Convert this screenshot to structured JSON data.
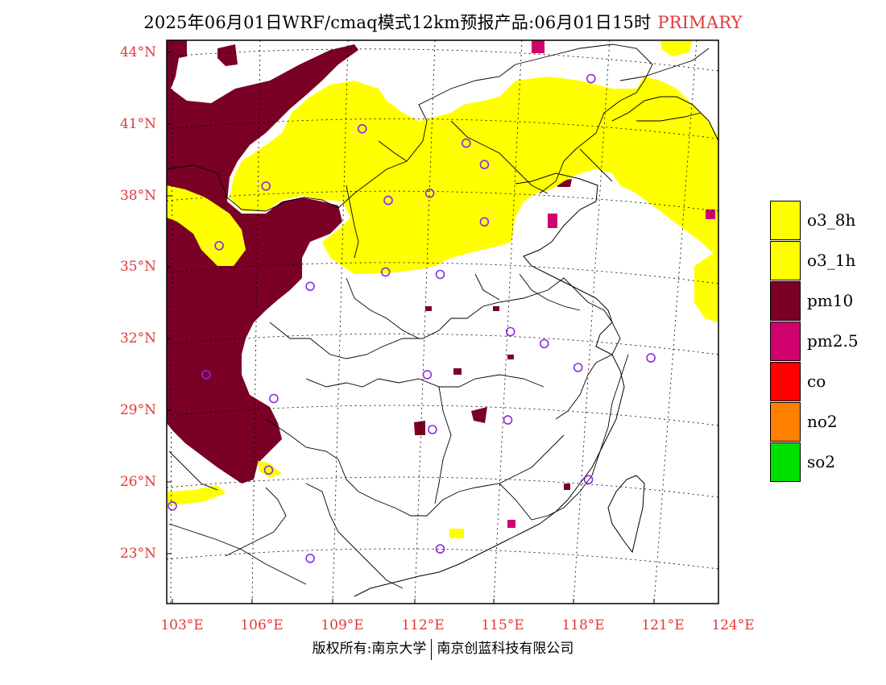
{
  "title": {
    "text": "2025年06月01日WRF/cmaq模式12km预报产品:06月01日15时",
    "tag": "PRIMARY"
  },
  "latitude_labels": [
    "44°N",
    "41°N",
    "38°N",
    "35°N",
    "32°N",
    "29°N",
    "26°N",
    "23°N"
  ],
  "longitude_labels": [
    "103°E",
    "106°E",
    "109°E",
    "112°E",
    "115°E",
    "118°E",
    "121°E",
    "124°E"
  ],
  "legend": [
    {
      "label": "o3_8h",
      "color": "#ffff00"
    },
    {
      "label": "o3_1h",
      "color": "#ffff00"
    },
    {
      "label": "pm10",
      "color": "#7a0026"
    },
    {
      "label": "pm2.5",
      "color": "#d0006f"
    },
    {
      "label": "co",
      "color": "#ff0000"
    },
    {
      "label": "no2",
      "color": "#ff7f00"
    },
    {
      "label": "so2",
      "color": "#00e000"
    }
  ],
  "footer": {
    "left": "版权所有:南京大学",
    "right": "南京创蓝科技有限公司"
  },
  "colors": {
    "label_red": "#e03a3a",
    "station_marker": "#8a2be2"
  },
  "map_data": {
    "type": "pollutant_primary_map",
    "lon_range": [
      103,
      124
    ],
    "lat_range": [
      21,
      44.5
    ],
    "stations": [
      [
        110.3,
        40.8
      ],
      [
        114.3,
        40.2
      ],
      [
        115.0,
        39.3
      ],
      [
        119.1,
        42.9
      ],
      [
        106.6,
        38.4
      ],
      [
        111.3,
        37.8
      ],
      [
        112.9,
        38.1
      ],
      [
        115.0,
        36.9
      ],
      [
        104.8,
        35.9
      ],
      [
        111.2,
        34.8
      ],
      [
        108.3,
        34.2
      ],
      [
        113.3,
        34.7
      ],
      [
        116.0,
        32.3
      ],
      [
        117.3,
        31.8
      ],
      [
        121.4,
        31.2
      ],
      [
        112.8,
        30.5
      ],
      [
        118.6,
        30.8
      ],
      [
        104.3,
        30.5
      ],
      [
        106.9,
        29.5
      ],
      [
        113.0,
        28.2
      ],
      [
        115.9,
        28.6
      ],
      [
        119.0,
        26.1
      ],
      [
        106.7,
        26.5
      ],
      [
        103.0,
        25.0
      ],
      [
        108.3,
        22.8
      ],
      [
        113.3,
        23.2
      ]
    ]
  }
}
